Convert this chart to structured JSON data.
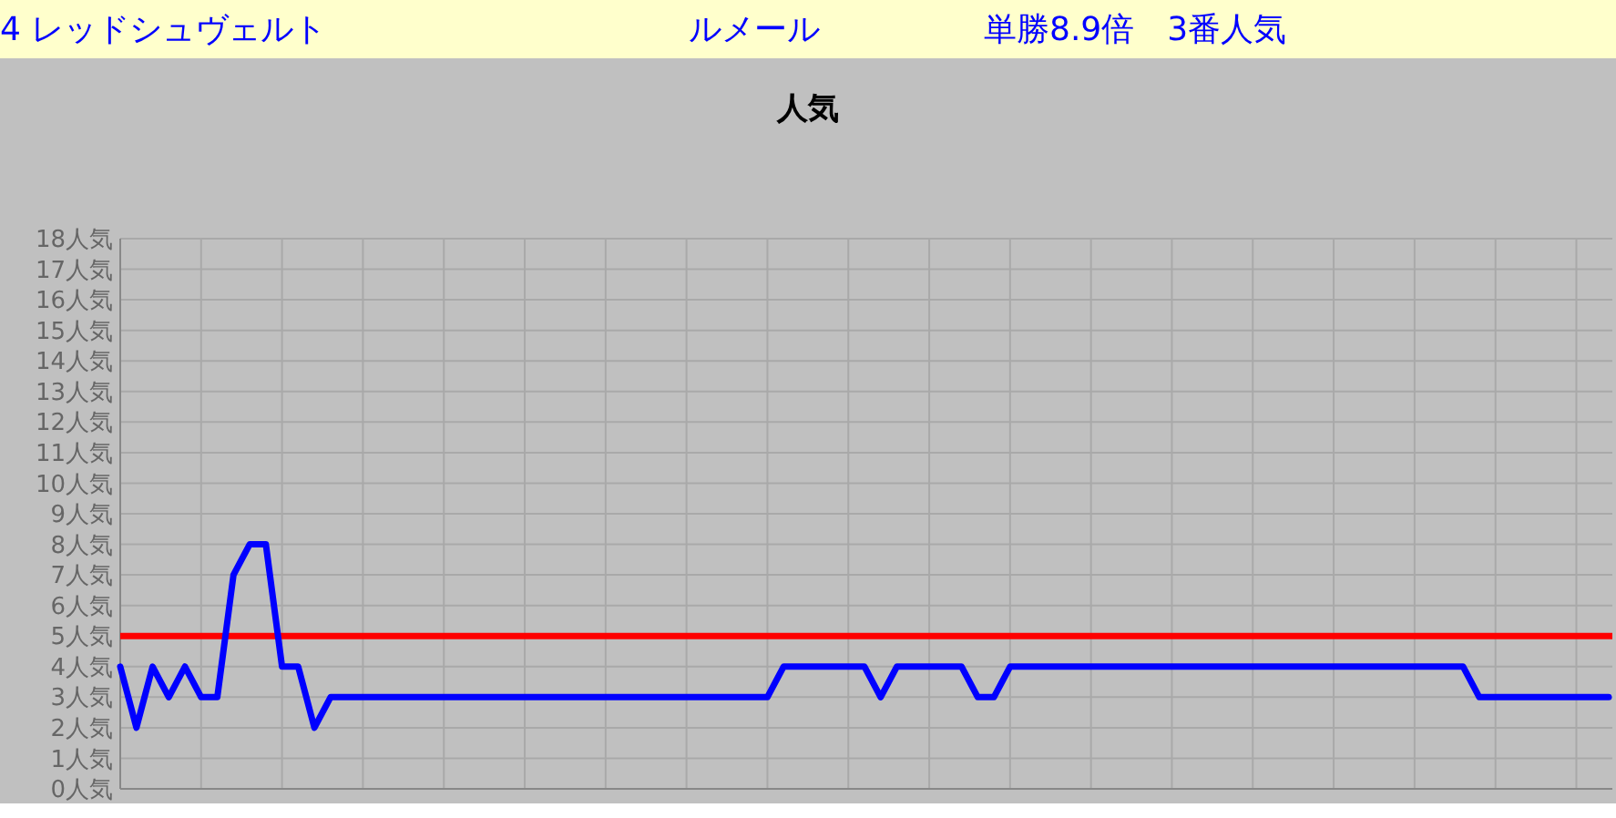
{
  "chart_data": {
    "type": "line",
    "title": "人気",
    "annotations": [
      "4 レッドシュヴェルト",
      "ルメール",
      "単勝8.9倍　3番人気"
    ],
    "categories": [
      null,
      null,
      null,
      null,
      null,
      null,
      null,
      null,
      null,
      null,
      null,
      null,
      null,
      null,
      null,
      null,
      null,
      null,
      null,
      null,
      null,
      null,
      null,
      null,
      null,
      null,
      null,
      null,
      null,
      null,
      null,
      null,
      null,
      null,
      null,
      null,
      null,
      null,
      null,
      null,
      null,
      null,
      null,
      null,
      null,
      null,
      null,
      null,
      null,
      null,
      null,
      null,
      null,
      null,
      null,
      null,
      null,
      null,
      null,
      null,
      null,
      null,
      null,
      null,
      null,
      null,
      null,
      null,
      null,
      null,
      null,
      null,
      null,
      null,
      null,
      null,
      null,
      null,
      null,
      null,
      null,
      null,
      null,
      null,
      null,
      null,
      null,
      null,
      null,
      null,
      null,
      null,
      null
    ],
    "series": [
      {
        "color": "#0000ff",
        "values": [
          4,
          2,
          4,
          3,
          4,
          3,
          3,
          7,
          8,
          8,
          4,
          4,
          2,
          3,
          3,
          3,
          3,
          3,
          3,
          3,
          3,
          3,
          3,
          3,
          3,
          3,
          3,
          3,
          3,
          3,
          3,
          3,
          3,
          3,
          3,
          3,
          3,
          3,
          3,
          3,
          3,
          4,
          4,
          4,
          4,
          4,
          4,
          3,
          4,
          4,
          4,
          4,
          4,
          3,
          3,
          4,
          4,
          4,
          4,
          4,
          4,
          4,
          4,
          4,
          4,
          4,
          4,
          4,
          4,
          4,
          4,
          4,
          4,
          4,
          4,
          4,
          4,
          4,
          4,
          4,
          4,
          4,
          4,
          4,
          3,
          3,
          3,
          3,
          3,
          3,
          3,
          3,
          3
        ]
      }
    ],
    "ylim": [
      0,
      18
    ],
    "yticks": [
      {
        "value": 0,
        "label": "0人気"
      },
      {
        "value": 1,
        "label": "1人気"
      },
      {
        "value": 2,
        "label": "2人気"
      },
      {
        "value": 3,
        "label": "3人気"
      },
      {
        "value": 4,
        "label": "4人気"
      },
      {
        "value": 5,
        "label": "5人気"
      },
      {
        "value": 6,
        "label": "6人気"
      },
      {
        "value": 7,
        "label": "7人気"
      },
      {
        "value": 8,
        "label": "8人気"
      },
      {
        "value": 9,
        "label": "9人気"
      },
      {
        "value": 10,
        "label": "10人気"
      },
      {
        "value": 11,
        "label": "11人気"
      },
      {
        "value": 12,
        "label": "12人気"
      },
      {
        "value": 13,
        "label": "13人気"
      },
      {
        "value": 14,
        "label": "14人気"
      },
      {
        "value": 15,
        "label": "15人気"
      },
      {
        "value": 16,
        "label": "16人気"
      },
      {
        "value": 17,
        "label": "17人気"
      },
      {
        "value": 18,
        "label": "18人気"
      }
    ],
    "grid": true,
    "marker": "none",
    "line_style": "solid",
    "ref_lines": [
      {
        "axis": "y",
        "value": 5,
        "color": "#ff0000"
      }
    ]
  }
}
